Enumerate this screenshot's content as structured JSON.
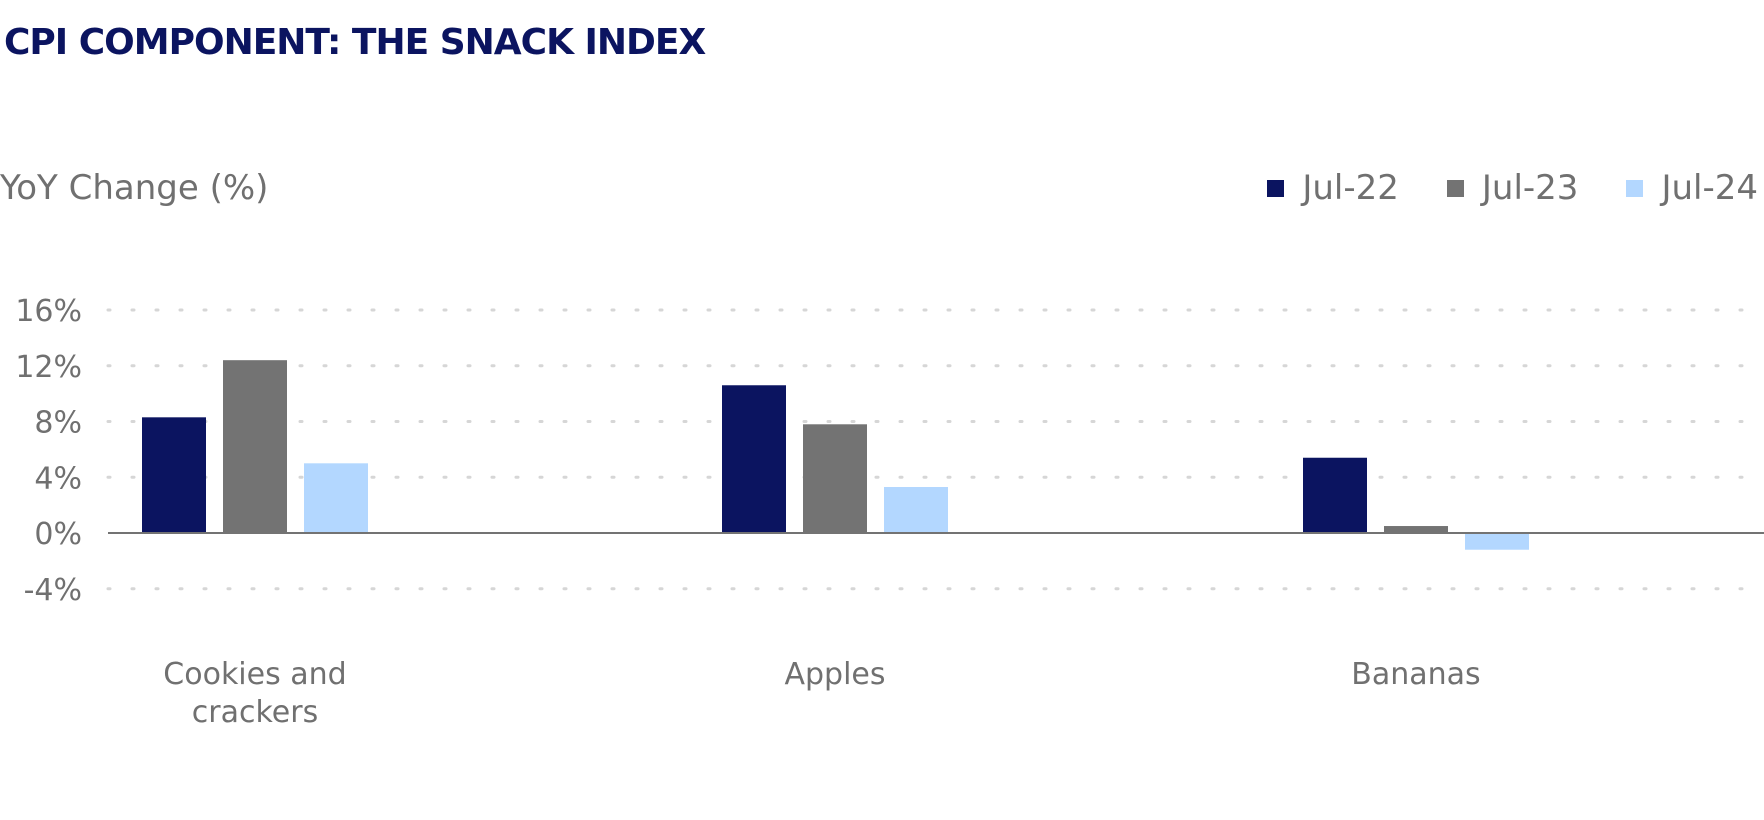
{
  "title": "CPI COMPONENT: THE SNACK INDEX",
  "chart_data": {
    "type": "bar",
    "ylabel": "YoY Change (%)",
    "xlabel": "",
    "categories": [
      [
        "Cookies and",
        "crackers"
      ],
      [
        "Apples"
      ],
      [
        "Bananas"
      ]
    ],
    "series": [
      {
        "name": "Jul-22",
        "color": "#0b1460",
        "values": [
          8.3,
          10.6,
          5.4
        ]
      },
      {
        "name": "Jul-23",
        "color": "#737373",
        "values": [
          12.4,
          7.8,
          0.5
        ]
      },
      {
        "name": "Jul-24",
        "color": "#b3d7ff",
        "values": [
          5.0,
          3.3,
          -1.2
        ]
      }
    ],
    "yticks": [
      16,
      12,
      8,
      4,
      0,
      -4
    ],
    "ytick_labels": [
      "16%",
      "12%",
      "8%",
      "4%",
      "0%",
      "-4%"
    ],
    "ylim": [
      -4,
      16
    ],
    "grid": true,
    "legend_position": "top-right"
  }
}
